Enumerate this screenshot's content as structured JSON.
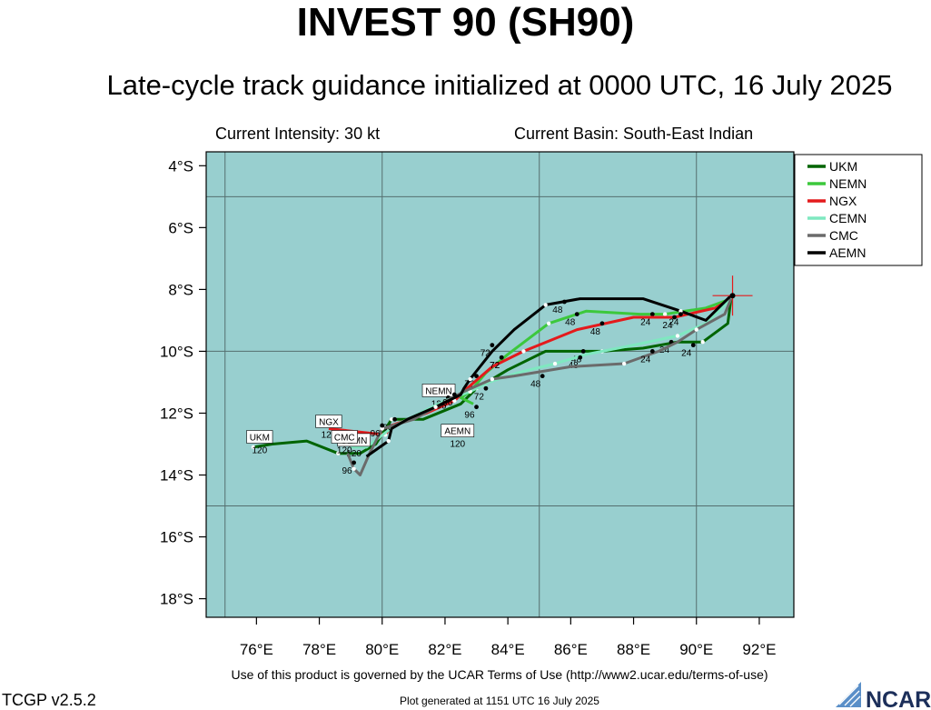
{
  "header": {
    "title": "INVEST 90 (SH90)",
    "subtitle": "Late-cycle track guidance initialized at 0000 UTC, 16 July 2025",
    "intensity": "Current Intensity: 30 kt",
    "basin": "Current Basin: South-East Indian"
  },
  "footer": {
    "terms": "Use of this product is governed by the UCAR Terms of Use (http://www2.ucar.edu/terms-of-use)",
    "version": "TCGP v2.5.2",
    "generated": "Plot generated at 1151 UTC   16 July 2025",
    "logo_text": "NCAR"
  },
  "map": {
    "background_color": "#98cfcf",
    "lon_range": [
      74.4,
      93.1
    ],
    "lat_range": [
      -18.6,
      -3.55
    ],
    "lon_ticks": [
      {
        "v": 76,
        "label": "76°E"
      },
      {
        "v": 78,
        "label": "78°E"
      },
      {
        "v": 80,
        "label": "80°E"
      },
      {
        "v": 82,
        "label": "82°E"
      },
      {
        "v": 84,
        "label": "84°E"
      },
      {
        "v": 86,
        "label": "86°E"
      },
      {
        "v": 88,
        "label": "88°E"
      },
      {
        "v": 90,
        "label": "90°E"
      },
      {
        "v": 92,
        "label": "92°E"
      }
    ],
    "lat_ticks": [
      {
        "v": -4,
        "label": "4°S"
      },
      {
        "v": -6,
        "label": "6°S"
      },
      {
        "v": -8,
        "label": "8°S"
      },
      {
        "v": -10,
        "label": "10°S"
      },
      {
        "v": -12,
        "label": "12°S"
      },
      {
        "v": -14,
        "label": "14°S"
      },
      {
        "v": -16,
        "label": "16°S"
      },
      {
        "v": -18,
        "label": "18°S"
      }
    ],
    "grid_lons": [
      75,
      80,
      85,
      90
    ],
    "grid_lats": [
      -5,
      -10,
      -15
    ],
    "current_position": {
      "lon": 91.15,
      "lat": -8.2
    }
  },
  "chart_data": {
    "type": "line",
    "xlabel": "",
    "ylabel": "",
    "xlim": [
      74.4,
      93.1
    ],
    "ylim": [
      -18.6,
      -3.55
    ],
    "legend_placement": "top-right",
    "series": [
      {
        "name": "UKM",
        "color": "#006400",
        "points": [
          [
            91.1,
            -8.3
          ],
          [
            91.0,
            -9.1
          ],
          [
            90.2,
            -9.7
          ],
          [
            89.4,
            -9.7
          ],
          [
            88.3,
            -9.9
          ],
          [
            87.0,
            -10.0
          ],
          [
            85.2,
            -10.0
          ],
          [
            84.0,
            -10.6
          ],
          [
            83.0,
            -11.2
          ],
          [
            82.5,
            -11.7
          ],
          [
            81.3,
            -12.2
          ],
          [
            80.3,
            -12.2
          ],
          [
            79.8,
            -13.0
          ],
          [
            79.3,
            -13.3
          ],
          [
            78.6,
            -13.3
          ],
          [
            77.6,
            -12.9
          ],
          [
            76.5,
            -13.0
          ],
          [
            75.9,
            -13.1
          ]
        ],
        "labels": [
          {
            "lon": 89.9,
            "lat": -9.8,
            "text": "24"
          },
          {
            "lon": 86.4,
            "lat": -10.0,
            "text": "48"
          },
          {
            "lon": 83.0,
            "lat": -10.8,
            "text": "72"
          }
        ],
        "end_label": "UKM",
        "end_hour": "120",
        "end_pos": [
          76.1,
          -13.0
        ]
      },
      {
        "name": "NEMN",
        "color": "#3cc83c",
        "points": [
          [
            91.1,
            -8.3
          ],
          [
            90.3,
            -8.6
          ],
          [
            89.0,
            -8.8
          ],
          [
            88.2,
            -8.8
          ],
          [
            86.5,
            -8.7
          ],
          [
            85.3,
            -9.1
          ],
          [
            84.0,
            -10.1
          ],
          [
            83.3,
            -10.7
          ],
          [
            82.8,
            -11.3
          ],
          [
            82.5,
            -11.5
          ],
          [
            82.9,
            -11.7
          ]
        ],
        "labels": [
          {
            "lon": 88.6,
            "lat": -8.8,
            "text": "24"
          },
          {
            "lon": 86.2,
            "lat": -8.8,
            "text": "48"
          },
          {
            "lon": 83.8,
            "lat": -10.2,
            "text": "72"
          },
          {
            "lon": 83.0,
            "lat": -11.8,
            "text": "96"
          }
        ],
        "end_label": "NEMN",
        "end_hour": "120",
        "end_pos": [
          81.8,
          -11.5
        ]
      },
      {
        "name": "NGX",
        "color": "#e41a1c",
        "points": [
          [
            91.1,
            -8.3
          ],
          [
            90.6,
            -8.6
          ],
          [
            89.3,
            -8.9
          ],
          [
            88.0,
            -8.9
          ],
          [
            86.2,
            -9.3
          ],
          [
            84.5,
            -10.0
          ],
          [
            83.5,
            -10.5
          ],
          [
            82.7,
            -11.2
          ],
          [
            82.3,
            -11.6
          ],
          [
            81.4,
            -12.0
          ],
          [
            80.3,
            -12.4
          ],
          [
            80.1,
            -12.7
          ],
          [
            78.3,
            -12.5
          ]
        ],
        "labels": [
          {
            "lon": 89.3,
            "lat": -8.9,
            "text": "24"
          },
          {
            "lon": 87.0,
            "lat": -9.1,
            "text": "48"
          },
          {
            "lon": 83.8,
            "lat": -10.2,
            "text": "72"
          },
          {
            "lon": 82.1,
            "lat": -11.5,
            "text": "96"
          }
        ],
        "end_label": "NGX",
        "end_hour": "120",
        "end_pos": [
          78.3,
          -12.5
        ]
      },
      {
        "name": "CEMN",
        "color": "#7fe8c0",
        "points": [
          [
            91.1,
            -8.3
          ],
          [
            90.3,
            -9.1
          ],
          [
            89.4,
            -9.5
          ],
          [
            88.0,
            -9.8
          ],
          [
            86.5,
            -10.1
          ],
          [
            85.5,
            -10.4
          ],
          [
            84.3,
            -10.7
          ],
          [
            83.4,
            -11.0
          ],
          [
            82.8,
            -11.3
          ],
          [
            82.0,
            -11.6
          ],
          [
            81.0,
            -12.1
          ],
          [
            80.4,
            -12.4
          ],
          [
            79.5,
            -13.1
          ],
          [
            79.0,
            -13.1
          ]
        ],
        "labels": [
          {
            "lon": 89.2,
            "lat": -9.7,
            "text": "24"
          },
          {
            "lon": 86.3,
            "lat": -10.2,
            "text": "48"
          },
          {
            "lon": 83.3,
            "lat": -11.2,
            "text": "72"
          },
          {
            "lon": 80.4,
            "lat": -12.2,
            "text": "96"
          }
        ],
        "end_label": "CEMN",
        "end_hour": "120",
        "end_pos": [
          79.1,
          -13.1
        ]
      },
      {
        "name": "CMC",
        "color": "#6b6b6b",
        "points": [
          [
            91.1,
            -8.3
          ],
          [
            90.9,
            -8.8
          ],
          [
            90.0,
            -9.3
          ],
          [
            89.4,
            -9.7
          ],
          [
            88.8,
            -10.0
          ],
          [
            87.7,
            -10.4
          ],
          [
            86.0,
            -10.5
          ],
          [
            84.2,
            -10.8
          ],
          [
            83.5,
            -10.9
          ],
          [
            82.6,
            -11.3
          ],
          [
            81.0,
            -12.2
          ],
          [
            80.0,
            -12.5
          ],
          [
            79.6,
            -13.3
          ],
          [
            79.3,
            -14.0
          ],
          [
            79.1,
            -13.8
          ],
          [
            78.9,
            -13.3
          ]
        ],
        "labels": [
          {
            "lon": 88.6,
            "lat": -10.0,
            "text": "24"
          },
          {
            "lon": 85.1,
            "lat": -10.8,
            "text": "48"
          },
          {
            "lon": 80.0,
            "lat": -12.4,
            "text": "96"
          },
          {
            "lon": 79.1,
            "lat": -13.6,
            "text": "96"
          }
        ],
        "end_label": "CMC",
        "end_hour": "120",
        "end_pos": [
          78.8,
          -13.0
        ]
      },
      {
        "name": "AEMN",
        "color": "#000000",
        "points": [
          [
            91.1,
            -8.2
          ],
          [
            90.3,
            -9.0
          ],
          [
            89.5,
            -8.7
          ],
          [
            88.3,
            -8.3
          ],
          [
            86.3,
            -8.3
          ],
          [
            85.2,
            -8.5
          ],
          [
            84.2,
            -9.3
          ],
          [
            83.5,
            -10.0
          ],
          [
            82.8,
            -10.9
          ],
          [
            82.6,
            -11.2
          ],
          [
            82.5,
            -11.4
          ],
          [
            81.7,
            -11.8
          ],
          [
            80.8,
            -12.2
          ],
          [
            80.3,
            -12.5
          ],
          [
            80.2,
            -12.9
          ],
          [
            79.5,
            -13.4
          ]
        ],
        "labels": [
          {
            "lon": 89.5,
            "lat": -8.8,
            "text": "24"
          },
          {
            "lon": 85.8,
            "lat": -8.4,
            "text": "48"
          },
          {
            "lon": 83.5,
            "lat": -9.8,
            "text": "72"
          },
          {
            "lon": 82.3,
            "lat": -11.4,
            "text": "96"
          }
        ],
        "end_label": "AEMN",
        "end_hour": "120",
        "end_pos": [
          82.4,
          -12.8
        ]
      }
    ]
  }
}
